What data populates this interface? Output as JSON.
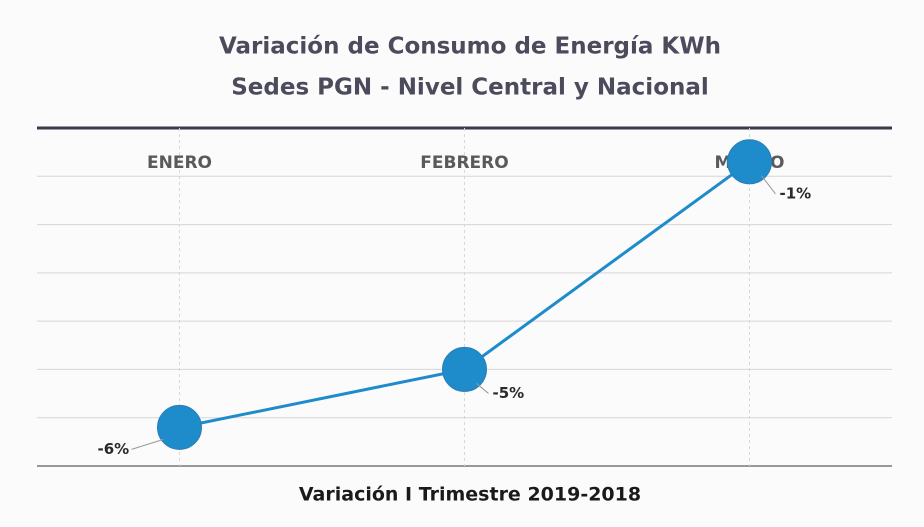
{
  "chart_data": {
    "type": "line",
    "title": "Variación de Consumo de Energía KWh",
    "subtitle": "Sedes PGN - Nivel Central y Nacional",
    "x_label": "Variación I Trimestre 2019-2018",
    "categories": [
      "ENERO",
      "FEBRERO",
      "MARZO"
    ],
    "series": [
      {
        "name": "Variación",
        "color": "#1e8bcb",
        "values": [
          -6.2,
          -5,
          -0.7
        ],
        "value_labels": [
          "-6%",
          "-5%",
          "-1%"
        ]
      }
    ],
    "ylim": [
      -7,
      0
    ],
    "yticks": [
      -7,
      -6,
      -5,
      -4,
      -3,
      -2,
      -1,
      0
    ],
    "grid": true
  }
}
